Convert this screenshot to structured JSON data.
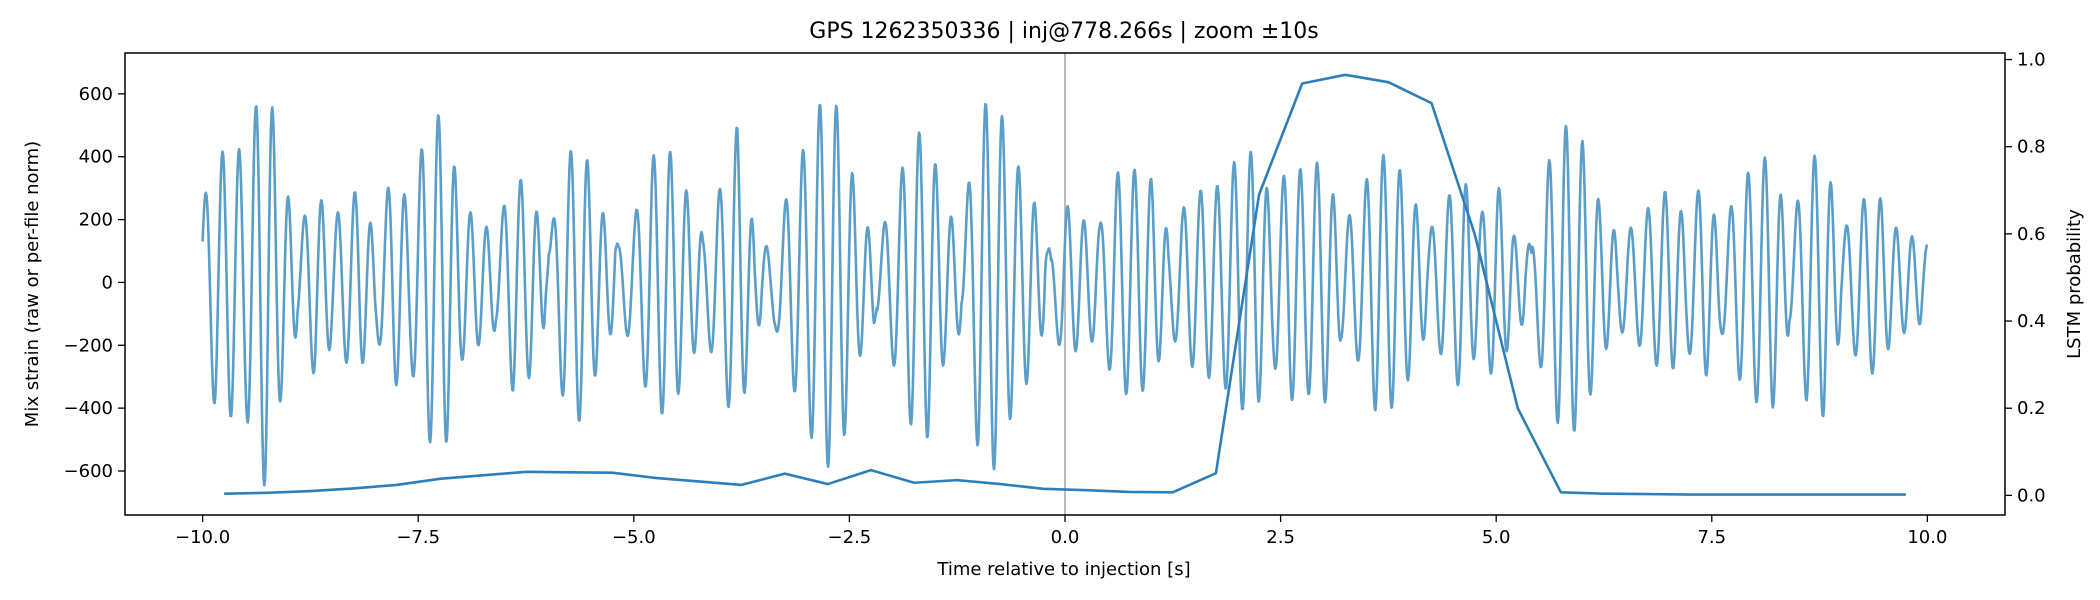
{
  "chart_data": {
    "type": "line",
    "title": "GPS 1262350336 | inj@778.266s | zoom ±10s",
    "xlabel": "Time relative to injection [s]",
    "ylabel": "Mix strain (raw or per-file norm)",
    "y2label": "LSTM probability",
    "xlim": [
      -10.9,
      10.9
    ],
    "ylim": [
      -740,
      730
    ],
    "y2lim": [
      -0.045,
      1.015
    ],
    "xticks": [
      -10.0,
      -7.5,
      -5.0,
      -2.5,
      0.0,
      2.5,
      5.0,
      7.5,
      10.0
    ],
    "xtick_labels": [
      "−10.0",
      "−7.5",
      "−5.0",
      "−2.5",
      "0.0",
      "2.5",
      "5.0",
      "7.5",
      "10.0"
    ],
    "yticks": [
      600,
      400,
      200,
      0,
      -200,
      -400,
      -600
    ],
    "ytick_labels": [
      "600",
      "400",
      "200",
      "0",
      "−200",
      "−400",
      "−600"
    ],
    "y2ticks": [
      1.0,
      0.8,
      0.6,
      0.4,
      0.2,
      0.0
    ],
    "y2tick_labels": [
      "1.0",
      "0.8",
      "0.6",
      "0.4",
      "0.2",
      "0.0"
    ],
    "injection_marker_x": 0.0,
    "colors": {
      "strain": "#5a9ec9",
      "probability": "#2e7fb8",
      "marker": "#bbbbbb",
      "frame": "#000000"
    },
    "series": [
      {
        "name": "Mix strain",
        "axis": "left",
        "kind": "oscillating",
        "x_range": [
          -10.0,
          10.0
        ],
        "start_value": 130,
        "end_value": 120,
        "cycles_per_second": 5.2,
        "envelope_x": [
          -10.0,
          -9.85,
          -9.7,
          -9.5,
          -9.35,
          -9.25,
          -9.1,
          -8.9,
          -8.7,
          -8.5,
          -8.2,
          -8.0,
          -7.8,
          -7.6,
          -7.4,
          -7.2,
          -7.0,
          -6.8,
          -6.6,
          -6.4,
          -6.2,
          -6.0,
          -5.8,
          -5.6,
          -5.4,
          -5.2,
          -5.0,
          -4.8,
          -4.6,
          -4.4,
          -4.2,
          -4.0,
          -3.8,
          -3.6,
          -3.4,
          -3.2,
          -3.0,
          -2.8,
          -2.6,
          -2.4,
          -2.2,
          -2.0,
          -1.8,
          -1.6,
          -1.4,
          -1.2,
          -1.0,
          -0.8,
          -0.6,
          -0.4,
          -0.2,
          0.0,
          0.2,
          0.4,
          0.6,
          0.8,
          1.0,
          1.2,
          1.4,
          1.6,
          1.8,
          2.0,
          2.2,
          2.4,
          2.6,
          2.8,
          3.0,
          3.2,
          3.4,
          3.6,
          3.8,
          4.0,
          4.2,
          4.4,
          4.6,
          4.8,
          5.0,
          5.2,
          5.4,
          5.6,
          5.8,
          6.0,
          6.2,
          6.4,
          6.6,
          6.8,
          7.0,
          7.2,
          7.4,
          7.6,
          7.8,
          8.0,
          8.2,
          8.4,
          8.6,
          8.8,
          9.0,
          9.2,
          9.4,
          9.6,
          9.8,
          10.0
        ],
        "envelope_amp": [
          250,
          400,
          430,
          420,
          600,
          670,
          380,
          150,
          300,
          200,
          300,
          150,
          350,
          250,
          500,
          550,
          250,
          200,
          150,
          350,
          300,
          100,
          400,
          450,
          250,
          120,
          200,
          400,
          430,
          300,
          150,
          300,
          500,
          150,
          100,
          300,
          450,
          600,
          550,
          250,
          120,
          250,
          450,
          500,
          250,
          150,
          550,
          600,
          400,
          300,
          100,
          250,
          200,
          180,
          350,
          360,
          330,
          150,
          250,
          300,
          310,
          400,
          420,
          250,
          380,
          350,
          400,
          180,
          250,
          410,
          400,
          300,
          150,
          250,
          350,
          200,
          330,
          150,
          120,
          380,
          500,
          450,
          250,
          150,
          180,
          250,
          300,
          200,
          330,
          150,
          300,
          380,
          410,
          150,
          380,
          430,
          150,
          250,
          300,
          180,
          150,
          120
        ]
      },
      {
        "name": "LSTM probability",
        "axis": "right",
        "kind": "line",
        "x": [
          -9.75,
          -9.25,
          -8.75,
          -8.25,
          -7.75,
          -7.25,
          -6.75,
          -6.25,
          -5.75,
          -5.25,
          -4.75,
          -4.25,
          -3.75,
          -3.25,
          -2.75,
          -2.25,
          -1.75,
          -1.25,
          -0.75,
          -0.25,
          0.25,
          0.75,
          1.25,
          1.75,
          2.25,
          2.75,
          3.25,
          3.75,
          4.25,
          4.75,
          5.25,
          5.75,
          6.25,
          6.75,
          7.25,
          7.75,
          8.25,
          8.75,
          9.25,
          9.75
        ],
        "values": [
          0.004,
          0.006,
          0.01,
          0.016,
          0.024,
          0.038,
          0.046,
          0.054,
          0.053,
          0.052,
          0.04,
          0.032,
          0.024,
          0.05,
          0.026,
          0.058,
          0.029,
          0.035,
          0.026,
          0.015,
          0.012,
          0.008,
          0.007,
          0.051,
          0.69,
          0.945,
          0.965,
          0.948,
          0.9,
          0.6,
          0.2,
          0.007,
          0.004,
          0.003,
          0.002,
          0.002,
          0.002,
          0.002,
          0.002,
          0.002
        ]
      }
    ]
  }
}
